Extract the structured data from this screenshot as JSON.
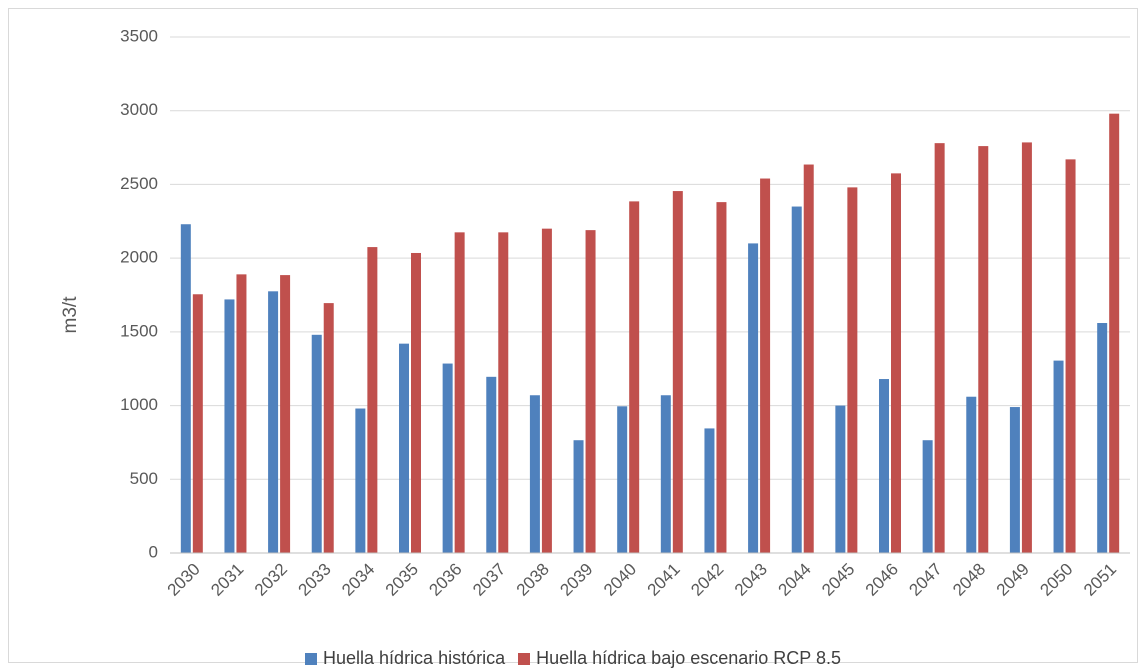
{
  "chart_data": {
    "type": "bar",
    "title": "",
    "xlabel": "",
    "ylabel": "m3/t",
    "ylim": [
      0,
      3500
    ],
    "yticks": [
      0,
      500,
      1000,
      1500,
      2000,
      2500,
      3000,
      3500
    ],
    "grid": true,
    "legend_position": "bottom",
    "categories": [
      "2030",
      "2031",
      "2032",
      "2033",
      "2034",
      "2035",
      "2036",
      "2037",
      "2038",
      "2039",
      "2040",
      "2041",
      "2042",
      "2043",
      "2044",
      "2045",
      "2046",
      "2047",
      "2048",
      "2049",
      "2050",
      "2051"
    ],
    "series": [
      {
        "name": "Huella hídrica histórica",
        "color": "#4f81bd",
        "values": [
          2230,
          1720,
          1775,
          1480,
          980,
          1420,
          1285,
          1195,
          1070,
          765,
          995,
          1070,
          845,
          2100,
          2350,
          1000,
          1180,
          765,
          1060,
          990,
          1305,
          1560
        ]
      },
      {
        "name": "Huella hídrica bajo escenario RCP 8.5",
        "color": "#c0504d",
        "values": [
          1755,
          1890,
          1885,
          1695,
          2075,
          2035,
          2175,
          2175,
          2200,
          2190,
          2385,
          2455,
          2380,
          2540,
          2635,
          2480,
          2575,
          2780,
          2760,
          2785,
          2670,
          2980
        ]
      }
    ]
  }
}
